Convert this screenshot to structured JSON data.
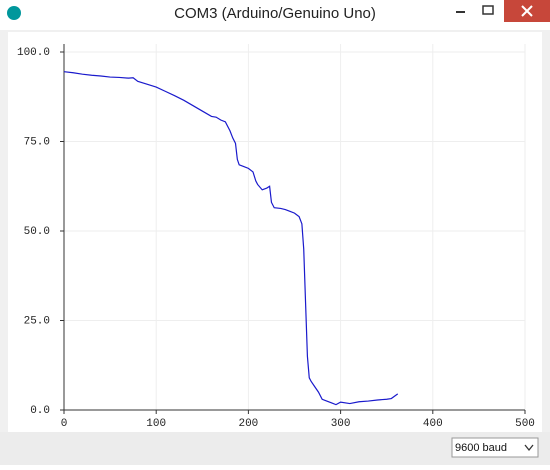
{
  "window": {
    "title": "COM3 (Arduino/Genuino Uno)"
  },
  "chart_data": {
    "type": "line",
    "x": [
      0,
      10,
      20,
      30,
      40,
      50,
      60,
      70,
      75,
      80,
      90,
      100,
      110,
      120,
      130,
      140,
      150,
      160,
      165,
      170,
      175,
      180,
      183,
      186,
      188,
      190,
      195,
      200,
      205,
      208,
      210,
      215,
      220,
      223,
      225,
      228,
      235,
      240,
      245,
      250,
      255,
      258,
      260,
      262,
      264,
      266,
      268,
      272,
      276,
      280,
      285,
      290,
      295,
      300,
      310,
      320,
      330,
      340,
      350,
      355,
      362
    ],
    "values": [
      94.5,
      94.2,
      93.8,
      93.5,
      93.3,
      93,
      92.9,
      92.7,
      92.8,
      91.8,
      91,
      90.2,
      89,
      87.8,
      86.5,
      85,
      83.5,
      82,
      81.8,
      81,
      80.5,
      78,
      76,
      74.5,
      70,
      68.5,
      68,
      67.5,
      66.5,
      64,
      63,
      61.5,
      62,
      62.5,
      58,
      56.5,
      56.3,
      56,
      55.5,
      55,
      54,
      52,
      45,
      30,
      15,
      9,
      8,
      6.5,
      5,
      3,
      2.5,
      2,
      1.5,
      2.2,
      1.8,
      2.3,
      2.5,
      2.8,
      3,
      3.2,
      4.5
    ],
    "color": "#1a1acc",
    "xlim": [
      0,
      500
    ],
    "xticks": [
      0,
      100,
      200,
      300,
      400,
      500
    ],
    "ylim": [
      0,
      100
    ],
    "yticks": [
      {
        "value": 0,
        "label": "0.0"
      },
      {
        "value": 25,
        "label": "25.0"
      },
      {
        "value": 50,
        "label": "50.0"
      },
      {
        "value": 75,
        "label": "75.0"
      },
      {
        "value": 100,
        "label": "100.0"
      }
    ],
    "grid": true
  },
  "footer": {
    "baud": "9600 baud"
  }
}
